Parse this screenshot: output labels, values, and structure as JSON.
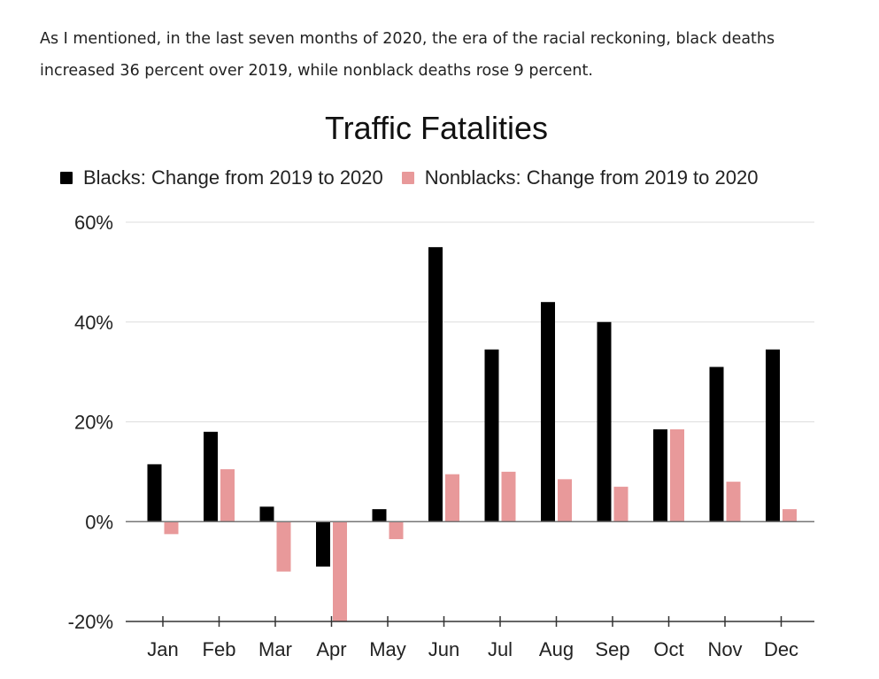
{
  "intro": {
    "line1": "As I mentioned, in the last seven months of 2020, the era of the racial reckoning, black deaths",
    "line2": "increased 36 percent over 2019, while nonblack deaths rose 9 percent."
  },
  "chart_data": {
    "type": "bar",
    "title": "Traffic Fatalities",
    "xlabel": "",
    "ylabel": "",
    "categories": [
      "Jan",
      "Feb",
      "Mar",
      "Apr",
      "May",
      "Jun",
      "Jul",
      "Aug",
      "Sep",
      "Oct",
      "Nov",
      "Dec"
    ],
    "series": [
      {
        "name": "Blacks: Change from 2019 to 2020",
        "color": "#000000",
        "values": [
          11.5,
          18,
          3,
          -9,
          2.5,
          55,
          34.5,
          44,
          40,
          18.5,
          31,
          34.5
        ]
      },
      {
        "name": "Nonblacks: Change from 2019 to 2020",
        "color": "#e8999a",
        "values": [
          -2.5,
          10.5,
          -10,
          -20,
          -3.5,
          9.5,
          10,
          8.5,
          7,
          18.5,
          8,
          2.5
        ]
      }
    ],
    "ylim": [
      -20,
      60
    ],
    "yticks": [
      {
        "value": 60,
        "label": "60%"
      },
      {
        "value": 40,
        "label": "40%"
      },
      {
        "value": 20,
        "label": "20%"
      },
      {
        "value": 0,
        "label": "0%"
      },
      {
        "value": -20,
        "label": "-20%"
      }
    ],
    "grid": true,
    "legend_position": "top"
  }
}
